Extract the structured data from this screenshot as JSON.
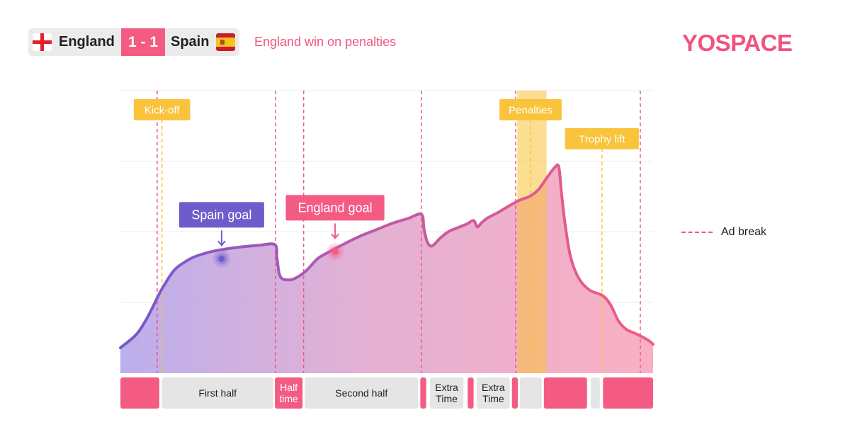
{
  "header": {
    "home_team": "England",
    "away_team": "Spain",
    "score": "1 - 1",
    "result": "England win on penalties",
    "home_flag_icon": "england-flag-icon",
    "away_flag_icon": "spain-flag-icon"
  },
  "brand": {
    "logo_text": "YOSPACE",
    "color": "#f0547e"
  },
  "legend": {
    "ad_break_label": "Ad break"
  },
  "colors": {
    "accent": "#f45b83",
    "yellow": "#f9c33b",
    "purple": "#6e5ccc",
    "grey": "#e5e5e5"
  },
  "chart_data": {
    "type": "area",
    "title": "",
    "xlabel": "",
    "ylabel": "",
    "xlim": [
      0,
      100
    ],
    "ylim": [
      0,
      4
    ],
    "grid": true,
    "series": [
      {
        "x": [
          0,
          3,
          5,
          7,
          8,
          10,
          12,
          14,
          17,
          20,
          23,
          26,
          29,
          29.4,
          30,
          31.5,
          33,
          35,
          37,
          39,
          42,
          45,
          48,
          51,
          54,
          56.5,
          57,
          57.6,
          58.5,
          60,
          61.5,
          63,
          65,
          66.3,
          67,
          67.8,
          69,
          71,
          73,
          75,
          77,
          78.5,
          80,
          81.5,
          82.3,
          82.8,
          83.5,
          84.5,
          86,
          88,
          90.5,
          92,
          93.5,
          95,
          97,
          99,
          100
        ],
        "y": [
          0.36,
          0.55,
          0.78,
          1.08,
          1.22,
          1.45,
          1.57,
          1.65,
          1.72,
          1.76,
          1.79,
          1.81,
          1.82,
          1.62,
          1.37,
          1.32,
          1.35,
          1.46,
          1.62,
          1.71,
          1.83,
          1.94,
          2.03,
          2.12,
          2.19,
          2.25,
          2.04,
          1.86,
          1.8,
          1.91,
          2.0,
          2.05,
          2.11,
          2.16,
          2.07,
          2.13,
          2.2,
          2.28,
          2.37,
          2.45,
          2.51,
          2.6,
          2.76,
          2.91,
          2.92,
          2.55,
          2.1,
          1.65,
          1.35,
          1.18,
          1.1,
          0.97,
          0.74,
          0.62,
          0.55,
          0.47,
          0.41
        ]
      }
    ],
    "ad_breaks_x": [
      6.9,
      29.1,
      34.4,
      56.5,
      74.2,
      97.6
    ],
    "event_markers": [
      {
        "label": "Kick-off",
        "x": 7.8,
        "label_y": 3.73
      },
      {
        "label": "Penalties",
        "x": 77.0,
        "label_y": 3.73
      },
      {
        "label": "Trophy lift",
        "x": 90.4,
        "label_y": 3.32
      }
    ],
    "penalty_shade": {
      "from": 74.5,
      "to": 80.0
    },
    "goals": [
      {
        "label": "Spain goal",
        "x": 19.0,
        "y": 1.62,
        "color": "#6e5ccc"
      },
      {
        "label": "England goal",
        "x": 40.3,
        "y": 1.72,
        "color": "#f45b83"
      }
    ],
    "timeline": [
      {
        "from": 0.0,
        "to": 7.3,
        "label": "",
        "type": "ad"
      },
      {
        "from": 7.8,
        "to": 28.7,
        "label": "First half",
        "type": "period"
      },
      {
        "from": 29.0,
        "to": 34.2,
        "label": "Half time",
        "type": "ad"
      },
      {
        "from": 34.6,
        "to": 55.9,
        "label": "Second half",
        "type": "period"
      },
      {
        "from": 56.3,
        "to": 57.4,
        "label": "",
        "type": "ad"
      },
      {
        "from": 58.1,
        "to": 64.4,
        "label": "Extra Time",
        "type": "period"
      },
      {
        "from": 65.2,
        "to": 66.3,
        "label": "",
        "type": "ad"
      },
      {
        "from": 66.9,
        "to": 73.1,
        "label": "Extra Time",
        "type": "period"
      },
      {
        "from": 73.5,
        "to": 74.6,
        "label": "",
        "type": "ad"
      },
      {
        "from": 75.0,
        "to": 79.1,
        "label": "",
        "type": "period"
      },
      {
        "from": 79.5,
        "to": 87.6,
        "label": "",
        "type": "ad"
      },
      {
        "from": 88.3,
        "to": 90.0,
        "label": "",
        "type": "period"
      },
      {
        "from": 90.6,
        "to": 100.0,
        "label": "",
        "type": "ad"
      }
    ]
  }
}
